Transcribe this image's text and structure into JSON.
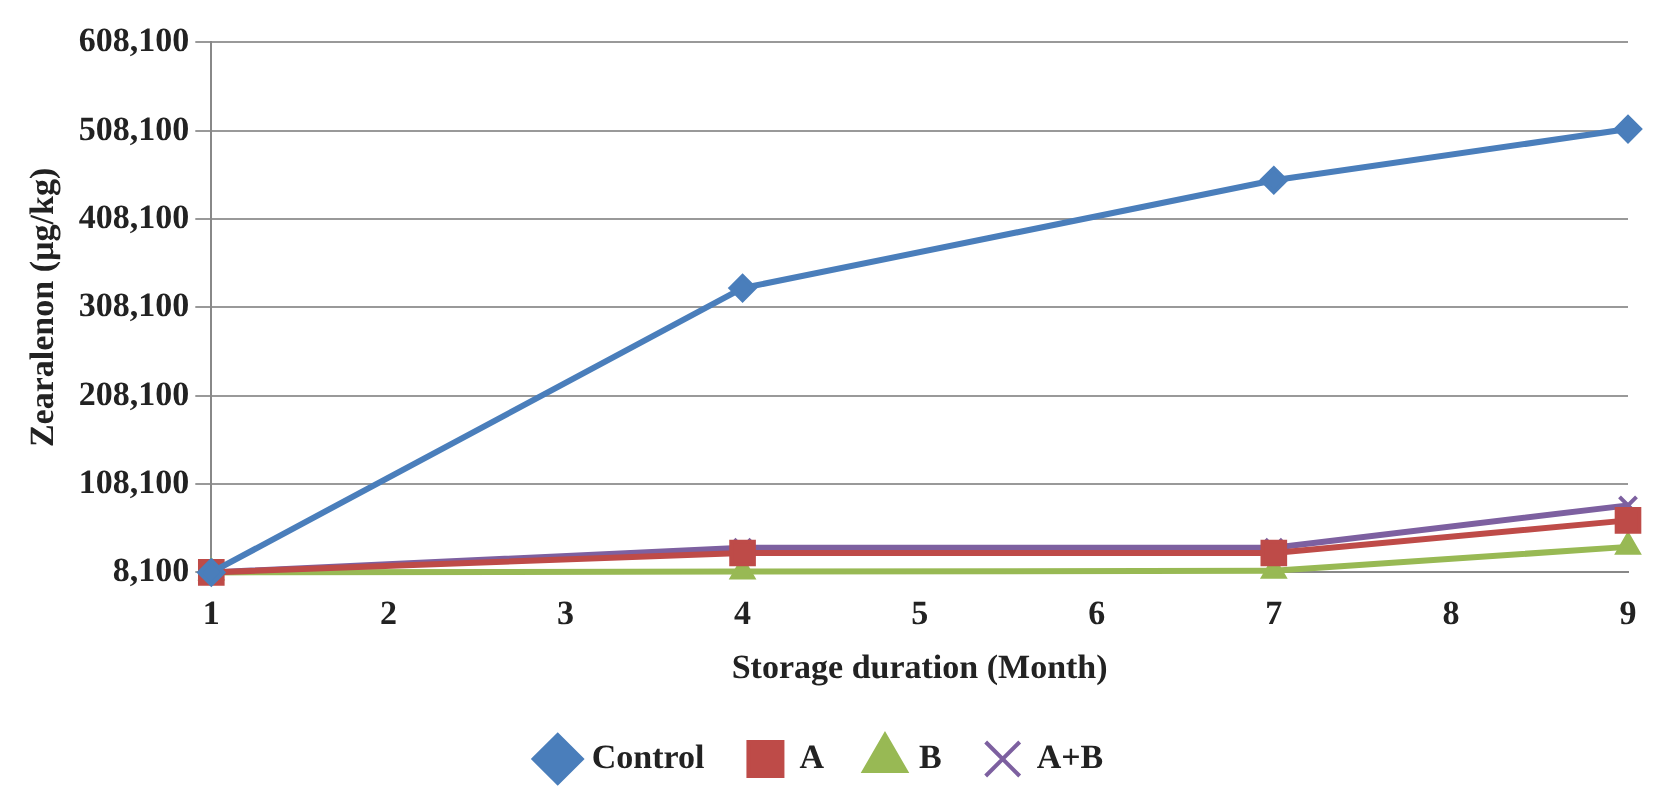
{
  "chart_data": {
    "type": "line",
    "xlabel": "Storage duration (Month)",
    "ylabel": "Zearalenon (µg/kg)",
    "x": [
      1,
      4,
      7,
      9
    ],
    "series": [
      {
        "name": "Control",
        "color": "#4a7ebb",
        "marker": "diamond",
        "values": [
          8100,
          330000,
          452000,
          510000
        ]
      },
      {
        "name": "A",
        "color": "#be4b48",
        "marker": "square",
        "values": [
          8100,
          30000,
          30000,
          67000
        ]
      },
      {
        "name": "B",
        "color": "#98b954",
        "marker": "triangle",
        "values": [
          8100,
          9000,
          10000,
          37000
        ]
      },
      {
        "name": "A+B",
        "color": "#7d60a0",
        "marker": "cross",
        "values": [
          8100,
          36000,
          36000,
          84000
        ]
      }
    ],
    "xlim": [
      1,
      9
    ],
    "xticks": [
      1,
      2,
      3,
      4,
      5,
      6,
      7,
      8,
      9
    ],
    "ylim": [
      8100,
      608100
    ],
    "yticks": [
      {
        "value": 8100,
        "label": "8,100"
      },
      {
        "value": 108100,
        "label": "108,100"
      },
      {
        "value": 208100,
        "label": "208,100"
      },
      {
        "value": 308100,
        "label": "308,100"
      },
      {
        "value": 408100,
        "label": "408,100"
      },
      {
        "value": 508100,
        "label": "508,100"
      },
      {
        "value": 608100,
        "label": "608,100"
      }
    ],
    "grid": "y",
    "legend": "bottom",
    "line_style": "solid"
  }
}
